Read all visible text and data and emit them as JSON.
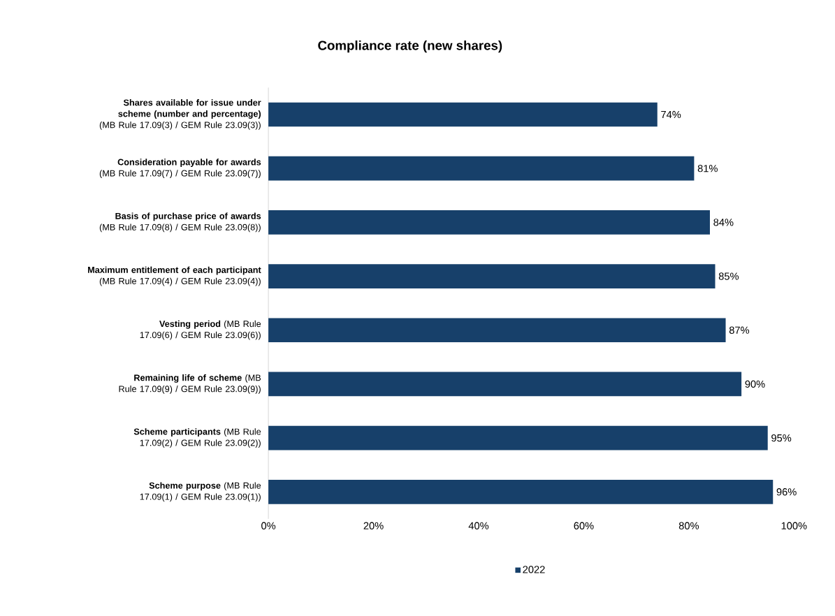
{
  "chart_data": {
    "type": "bar",
    "orientation": "horizontal",
    "title": "Compliance rate (new shares)",
    "categories": [
      "**Shares available for issue under scheme (number and percentage)** (MB Rule 17.09(3) / GEM Rule 23.09(3))",
      "**Consideration payable for awards** (MB Rule 17.09(7) / GEM Rule 23.09(7))",
      "**Basis of purchase price of awards** (MB Rule 17.09(8) / GEM Rule 23.09(8))",
      "**Maximum entitlement of each participant** (MB Rule 17.09(4) / GEM Rule 23.09(4))",
      "**Vesting period** (MB Rule 17.09(6) / GEM Rule 23.09(6))",
      "**Remaining life of scheme** (MB Rule 17.09(9) / GEM Rule 23.09(9))",
      "**Scheme participants** (MB Rule 17.09(2) / GEM Rule 23.09(2))",
      "**Scheme purpose** (MB Rule 17.09(1) / GEM Rule 23.09(1))"
    ],
    "series": [
      {
        "name": "2022",
        "color": "#17406a",
        "values": [
          74,
          81,
          84,
          85,
          87,
          90,
          95,
          96
        ],
        "value_labels": [
          "74%",
          "81%",
          "84%",
          "85%",
          "87%",
          "90%",
          "95%",
          "96%"
        ]
      }
    ],
    "xlim": [
      0,
      100
    ],
    "xticks": [
      {
        "value": 0,
        "label": "0%"
      },
      {
        "value": 20,
        "label": "20%"
      },
      {
        "value": 40,
        "label": "40%"
      },
      {
        "value": 60,
        "label": "60%"
      },
      {
        "value": 80,
        "label": "80%"
      },
      {
        "value": 100,
        "label": "100%"
      }
    ],
    "legend": "bottom"
  }
}
